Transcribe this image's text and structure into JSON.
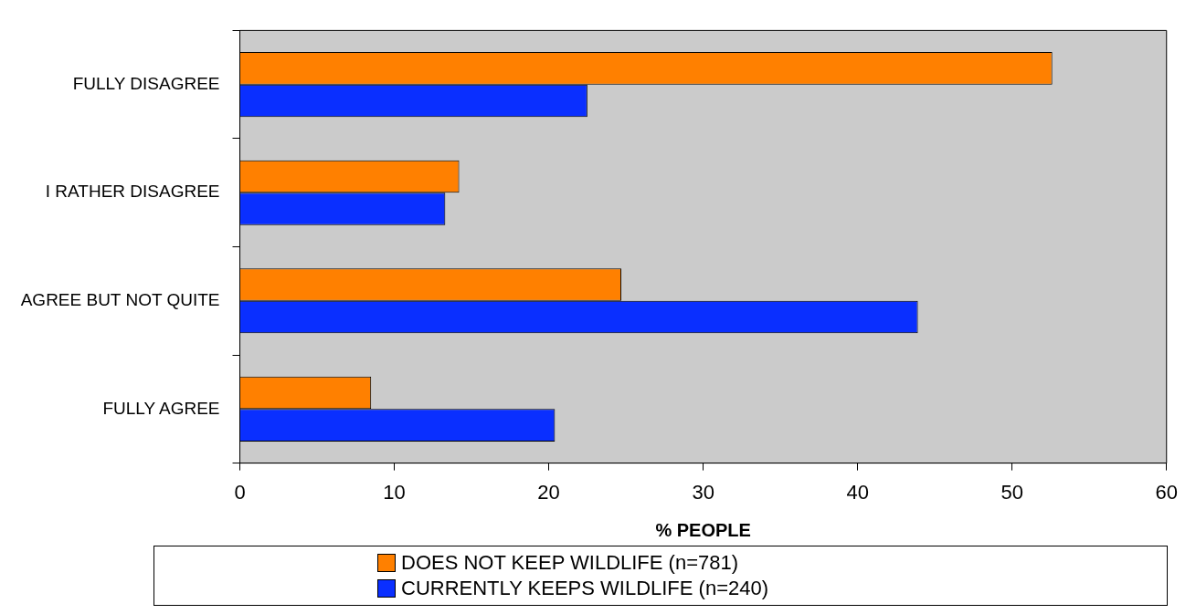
{
  "chart_data": {
    "type": "bar",
    "orientation": "horizontal",
    "categories": [
      "FULLY DISAGREE",
      "I RATHER DISAGREE",
      "AGREE BUT NOT QUITE",
      "FULLY AGREE"
    ],
    "series": [
      {
        "name": "DOES NOT KEEP WILDLIFE (n=781)",
        "color": "#ff8000",
        "values": [
          52.6,
          14.2,
          24.7,
          8.5
        ]
      },
      {
        "name": "CURRENTLY KEEPS WILDLIFE (n=240)",
        "color": "#0a2fff",
        "values": [
          22.5,
          13.3,
          43.9,
          20.4
        ]
      }
    ],
    "xlabel": "% PEOPLE",
    "xlim": [
      0,
      60
    ],
    "xticks": [
      0,
      10,
      20,
      30,
      40,
      50,
      60
    ],
    "grid": false,
    "legend": "bottom"
  }
}
